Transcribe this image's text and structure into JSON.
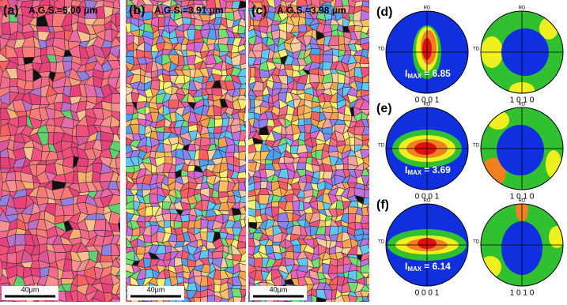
{
  "panels": [
    {
      "label": "(a)",
      "ags": "A.G.S.=5.00 μm",
      "scale_bar": "40μm"
    },
    {
      "label": "(b)",
      "ags": "A.G.S.=3.91 μm",
      "scale_bar": "40μm"
    },
    {
      "label": "(c)",
      "ags": "A.G.S.=3.98 μm",
      "scale_bar": "40μm"
    }
  ],
  "pole_rows": [
    {
      "label": "(d)",
      "imax_symbol": "I",
      "imax_sub": "MAX",
      "imax_value": "= 6.85",
      "plots": [
        {
          "rd": "RD",
          "td": "TD",
          "caption": "0 0 0 1"
        },
        {
          "rd": "RD",
          "td": "TD",
          "caption": "1 0 1 0"
        }
      ]
    },
    {
      "label": "(e)",
      "imax_symbol": "I",
      "imax_sub": "MAX",
      "imax_value": "= 3.69",
      "plots": [
        {
          "rd": "RD",
          "td": "TD",
          "caption": "0 0 0 1"
        },
        {
          "rd": "RD",
          "td": "TD",
          "caption": "1 0 1 0"
        }
      ]
    },
    {
      "label": "(f)",
      "imax_symbol": "I",
      "imax_sub": "MAX",
      "imax_value": "= 6.14",
      "plots": [
        {
          "rd": "RD",
          "td": "TD",
          "caption": "0 0 0 1"
        },
        {
          "rd": "RD",
          "td": "TD",
          "caption": "1 0 1 0"
        }
      ]
    }
  ]
}
